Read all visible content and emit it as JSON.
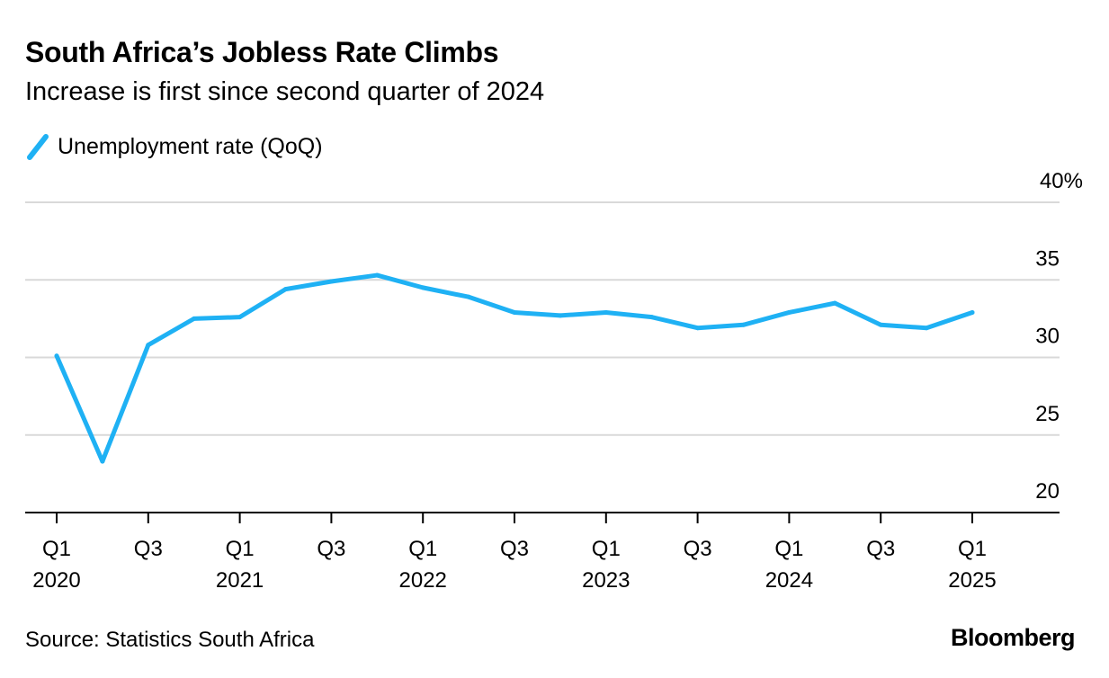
{
  "header": {
    "title": "South Africa’s Jobless Rate Climbs",
    "subtitle": "Increase is first since second quarter of 2024"
  },
  "footer": {
    "source": "Source: Statistics South Africa",
    "brand": "Bloomberg"
  },
  "colors": {
    "series": "#1fb1f4",
    "grid": "#d9d9d9",
    "axis": "#000000"
  },
  "chart_data": {
    "type": "line",
    "title": "South Africa’s Jobless Rate Climbs",
    "subtitle": "Increase is first since second quarter of 2024",
    "x": [
      "2020-Q1",
      "2020-Q2",
      "2020-Q3",
      "2020-Q4",
      "2021-Q1",
      "2021-Q2",
      "2021-Q3",
      "2021-Q4",
      "2022-Q1",
      "2022-Q2",
      "2022-Q3",
      "2022-Q4",
      "2023-Q1",
      "2023-Q2",
      "2023-Q3",
      "2023-Q4",
      "2024-Q1",
      "2024-Q2",
      "2024-Q3",
      "2024-Q4",
      "2025-Q1"
    ],
    "series": [
      {
        "name": "Unemployment rate (QoQ)",
        "values": [
          30.1,
          23.3,
          30.8,
          32.5,
          32.6,
          34.4,
          34.9,
          35.3,
          34.5,
          33.9,
          32.9,
          32.7,
          32.9,
          32.6,
          31.9,
          32.1,
          32.9,
          33.5,
          32.1,
          31.9,
          32.9
        ]
      }
    ],
    "ylim": [
      20,
      40
    ],
    "y_ticks": [
      20,
      25,
      30,
      35,
      40
    ],
    "y_tick_labels": [
      "20",
      "25",
      "30",
      "35",
      "40%"
    ],
    "x_ticks": [
      {
        "index": 0,
        "line1": "Q1",
        "line2": "2020"
      },
      {
        "index": 2,
        "line1": "Q3",
        "line2": ""
      },
      {
        "index": 4,
        "line1": "Q1",
        "line2": "2021"
      },
      {
        "index": 6,
        "line1": "Q3",
        "line2": ""
      },
      {
        "index": 8,
        "line1": "Q1",
        "line2": "2022"
      },
      {
        "index": 10,
        "line1": "Q3",
        "line2": ""
      },
      {
        "index": 12,
        "line1": "Q1",
        "line2": "2023"
      },
      {
        "index": 14,
        "line1": "Q3",
        "line2": ""
      },
      {
        "index": 16,
        "line1": "Q1",
        "line2": "2024"
      },
      {
        "index": 18,
        "line1": "Q3",
        "line2": ""
      },
      {
        "index": 20,
        "line1": "Q1",
        "line2": "2025"
      }
    ],
    "xlabel": "",
    "ylabel": "",
    "y_axis_position": "right",
    "grid": true,
    "legend_position": "top-left"
  }
}
